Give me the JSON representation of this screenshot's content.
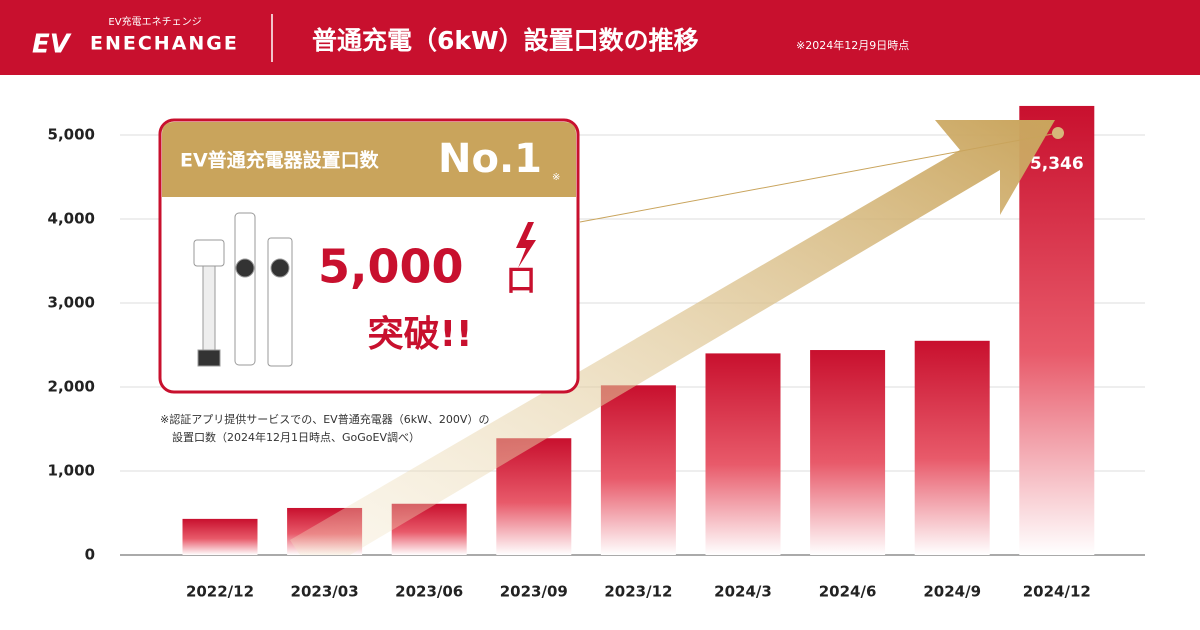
{
  "header": {
    "logo_sub": "EV充電エネチェンジ",
    "logo_ev": "EV",
    "logo": "ENECHANGE",
    "title": "普通充電（6kW）設置口数の推移",
    "note": "※2024年12月9日時点"
  },
  "callout": {
    "heading": "EV普通充電器設置口数",
    "rank": "No.1",
    "rank_note": "※",
    "number": "5,000",
    "unit": "口",
    "text": "突破!!"
  },
  "footnote": [
    "※認証アプリ提供サービスでの、EV普通充電器（6kW、200V）の",
    "設置口数（2024年12月1日時点、GoGoEV調べ）"
  ],
  "chart_data": {
    "type": "bar",
    "categories": [
      "2022/12",
      "2023/03",
      "2023/06",
      "2023/09",
      "2023/12",
      "2024/3",
      "2024/6",
      "2024/9",
      "2024/12"
    ],
    "values": [
      430,
      560,
      610,
      1390,
      2020,
      2400,
      2440,
      2550,
      5346
    ],
    "value_labels": [
      null,
      null,
      null,
      null,
      null,
      null,
      null,
      null,
      "5,346"
    ],
    "color": "#c8102e",
    "ylim": [
      0,
      5000
    ],
    "yticks": [
      0,
      {
        "value": 1000,
        "label": "1,000"
      },
      {
        "value": 2000,
        "label": "2,000"
      },
      {
        "value": 3000,
        "label": "3,000"
      },
      {
        "value": 4000,
        "label": "4,000"
      },
      {
        "value": 5000,
        "label": "5,000"
      }
    ],
    "grid": true
  }
}
